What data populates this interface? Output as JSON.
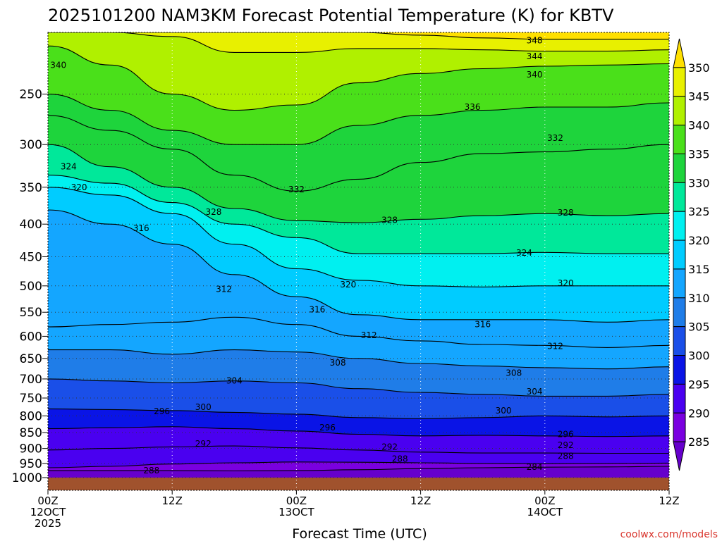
{
  "chart_data": {
    "type": "heatmap",
    "title": "2025101200 NAM3KM Forecast Potential Temperature (K) for KBTV",
    "xlabel": "Forecast Time (UTC)",
    "ylabel": "",
    "y_axis": {
      "scale": "log-pressure",
      "inverted": true,
      "ylim": [
        200,
        1000
      ],
      "ticks": [
        250,
        300,
        350,
        400,
        450,
        500,
        550,
        600,
        650,
        700,
        750,
        800,
        850,
        900,
        950,
        1000
      ]
    },
    "x_axis": {
      "xlim_hours": [
        0,
        60
      ],
      "ticks": [
        {
          "hour": 0,
          "lines": [
            "00Z",
            "12OCT",
            "2025"
          ]
        },
        {
          "hour": 12,
          "lines": [
            "12Z"
          ]
        },
        {
          "hour": 24,
          "lines": [
            "00Z",
            "13OCT"
          ]
        },
        {
          "hour": 36,
          "lines": [
            "12Z"
          ]
        },
        {
          "hour": 48,
          "lines": [
            "00Z",
            "14OCT"
          ]
        },
        {
          "hour": 60,
          "lines": [
            "12Z"
          ]
        }
      ]
    },
    "grid": true,
    "colorbar": {
      "ticks": [
        350,
        345,
        340,
        335,
        330,
        325,
        320,
        315,
        310,
        305,
        300,
        295,
        290,
        285
      ],
      "levels": [
        {
          "min": 280,
          "max": 285,
          "color": "#6600cc"
        },
        {
          "min": 285,
          "max": 290,
          "color": "#7a00e0"
        },
        {
          "min": 290,
          "max": 295,
          "color": "#4a00f0"
        },
        {
          "min": 295,
          "max": 300,
          "color": "#0a14e6"
        },
        {
          "min": 300,
          "max": 305,
          "color": "#1a4fe8"
        },
        {
          "min": 305,
          "max": 310,
          "color": "#1f7de8"
        },
        {
          "min": 310,
          "max": 315,
          "color": "#14a6ff"
        },
        {
          "min": 315,
          "max": 320,
          "color": "#00ccff"
        },
        {
          "min": 320,
          "max": 325,
          "color": "#00f0f0"
        },
        {
          "min": 325,
          "max": 330,
          "color": "#00e89a"
        },
        {
          "min": 330,
          "max": 335,
          "color": "#1ed43c"
        },
        {
          "min": 335,
          "max": 340,
          "color": "#4ae01a"
        },
        {
          "min": 340,
          "max": 345,
          "color": "#b0f000"
        },
        {
          "min": 345,
          "max": 350,
          "color": "#e8f000"
        },
        {
          "min": 350,
          "max": 355,
          "color": "#ffe000"
        }
      ]
    },
    "isentropes": [
      {
        "theta": 284,
        "pressure": [
          975,
          975,
          975,
          976,
          975,
          972,
          968,
          965,
          963,
          962,
          960
        ]
      },
      {
        "theta": 288,
        "pressure": [
          965,
          960,
          952,
          948,
          945,
          946,
          948,
          950,
          951,
          950,
          949
        ]
      },
      {
        "theta": 292,
        "pressure": [
          905,
          900,
          895,
          892,
          898,
          905,
          912,
          915,
          915,
          916,
          916
        ]
      },
      {
        "theta": 296,
        "pressure": [
          838,
          835,
          832,
          838,
          845,
          855,
          860,
          858,
          860,
          862,
          860
        ]
      },
      {
        "theta": 300,
        "pressure": [
          780,
          782,
          785,
          790,
          795,
          805,
          808,
          805,
          800,
          803,
          800
        ]
      },
      {
        "theta": 304,
        "pressure": [
          700,
          705,
          710,
          705,
          710,
          725,
          735,
          740,
          745,
          745,
          740
        ]
      },
      {
        "theta": 308,
        "pressure": [
          630,
          630,
          640,
          630,
          635,
          650,
          662,
          668,
          672,
          675,
          670
        ]
      },
      {
        "theta": 312,
        "pressure": [
          580,
          575,
          570,
          560,
          575,
          600,
          610,
          618,
          620,
          625,
          620
        ]
      },
      {
        "theta": 316,
        "pressure": [
          380,
          400,
          430,
          480,
          520,
          555,
          565,
          565,
          565,
          570,
          565
        ]
      },
      {
        "theta": 320,
        "pressure": [
          350,
          360,
          385,
          430,
          470,
          490,
          500,
          502,
          500,
          500,
          500
        ]
      },
      {
        "theta": 324,
        "pressure": [
          335,
          345,
          370,
          400,
          420,
          445,
          445,
          445,
          443,
          445,
          445
        ]
      },
      {
        "theta": 328,
        "pressure": [
          300,
          325,
          350,
          378,
          395,
          398,
          393,
          388,
          385,
          388,
          385
        ]
      },
      {
        "theta": 332,
        "pressure": [
          270,
          285,
          305,
          335,
          355,
          340,
          320,
          310,
          308,
          305,
          300
        ]
      },
      {
        "theta": 336,
        "pressure": [
          250,
          265,
          285,
          300,
          300,
          280,
          270,
          265,
          262,
          262,
          258
        ]
      },
      {
        "theta": 340,
        "pressure": [
          210,
          225,
          250,
          265,
          260,
          240,
          232,
          228,
          226,
          225,
          224
        ]
      },
      {
        "theta": 344,
        "pressure": [
          200,
          200,
          203,
          215,
          215,
          212,
          212,
          213,
          214,
          214,
          213
        ]
      },
      {
        "theta": 348,
        "pressure": [
          200,
          200,
          200,
          200,
          200,
          200,
          202,
          204,
          205,
          205,
          205
        ]
      }
    ],
    "contour_labels": [
      {
        "text": "348",
        "hour": 47,
        "pressure": 206
      },
      {
        "text": "344",
        "hour": 47,
        "pressure": 218
      },
      {
        "text": "340",
        "hour": 1,
        "pressure": 225
      },
      {
        "text": "340",
        "hour": 47,
        "pressure": 233
      },
      {
        "text": "336",
        "hour": 41,
        "pressure": 262
      },
      {
        "text": "332",
        "hour": 49,
        "pressure": 293
      },
      {
        "text": "332",
        "hour": 24,
        "pressure": 353
      },
      {
        "text": "328",
        "hour": 16,
        "pressure": 383
      },
      {
        "text": "328",
        "hour": 33,
        "pressure": 394
      },
      {
        "text": "328",
        "hour": 50,
        "pressure": 384
      },
      {
        "text": "324",
        "hour": 2,
        "pressure": 325
      },
      {
        "text": "320",
        "hour": 3,
        "pressure": 350
      },
      {
        "text": "324",
        "hour": 46,
        "pressure": 444
      },
      {
        "text": "316",
        "hour": 9,
        "pressure": 406
      },
      {
        "text": "320",
        "hour": 29,
        "pressure": 498
      },
      {
        "text": "320",
        "hour": 50,
        "pressure": 495
      },
      {
        "text": "312",
        "hour": 17,
        "pressure": 506
      },
      {
        "text": "316",
        "hour": 26,
        "pressure": 545
      },
      {
        "text": "316",
        "hour": 42,
        "pressure": 575
      },
      {
        "text": "312",
        "hour": 31,
        "pressure": 598
      },
      {
        "text": "312",
        "hour": 49,
        "pressure": 622
      },
      {
        "text": "308",
        "hour": 28,
        "pressure": 660
      },
      {
        "text": "308",
        "hour": 45,
        "pressure": 685
      },
      {
        "text": "304",
        "hour": 18,
        "pressure": 705
      },
      {
        "text": "304",
        "hour": 47,
        "pressure": 733
      },
      {
        "text": "300",
        "hour": 15,
        "pressure": 775
      },
      {
        "text": "300",
        "hour": 44,
        "pressure": 785
      },
      {
        "text": "296",
        "hour": 11,
        "pressure": 787
      },
      {
        "text": "296",
        "hour": 27,
        "pressure": 835
      },
      {
        "text": "296",
        "hour": 50,
        "pressure": 855
      },
      {
        "text": "292",
        "hour": 15,
        "pressure": 885
      },
      {
        "text": "292",
        "hour": 33,
        "pressure": 895
      },
      {
        "text": "292",
        "hour": 50,
        "pressure": 890
      },
      {
        "text": "288",
        "hour": 34,
        "pressure": 935
      },
      {
        "text": "288",
        "hour": 50,
        "pressure": 925
      },
      {
        "text": "288",
        "hour": 10,
        "pressure": 975
      },
      {
        "text": "284",
        "hour": 47,
        "pressure": 962
      }
    ],
    "ground_color": "#a0522d"
  },
  "credit": "coolwx.com/models"
}
